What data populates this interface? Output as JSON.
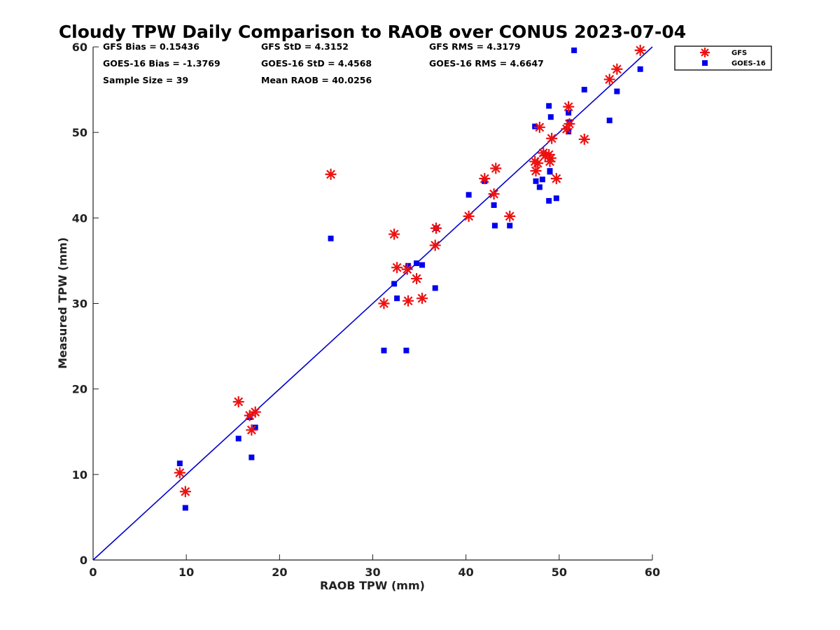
{
  "chart_data": {
    "type": "scatter",
    "title": "Cloudy TPW Daily Comparison to RAOB over CONUS 2023-07-04",
    "xlabel": "RAOB TPW (mm)",
    "ylabel": "Measured TPW (mm)",
    "xlim": [
      0,
      60
    ],
    "ylim": [
      0,
      60
    ],
    "xticks": [
      "0",
      "10",
      "20",
      "30",
      "40",
      "50",
      "60"
    ],
    "yticks": [
      "0",
      "10",
      "20",
      "30",
      "40",
      "50",
      "60"
    ],
    "grid": false,
    "legend_position": "outside-top-right",
    "stats": [
      [
        "GFS Bias = 0.15436",
        "GFS StD = 4.3152",
        "GFS RMS = 4.3179"
      ],
      [
        "GOES-16 Bias = -1.3769",
        "GOES-16 StD = 4.4568",
        "GOES-16 RMS = 4.6647"
      ],
      [
        "Sample Size = 39",
        "Mean RAOB = 40.0256",
        ""
      ]
    ],
    "one_to_one_line": {
      "x": [
        0,
        60
      ],
      "y": [
        0,
        60
      ],
      "color": "#0000cc"
    },
    "series": [
      {
        "name": "GFS",
        "marker": "asterisk",
        "color": "#ee1111",
        "x": [
          9.3,
          9.9,
          15.6,
          16.8,
          17.0,
          17.4,
          25.5,
          31.2,
          32.3,
          32.6,
          33.8,
          33.7,
          34.7,
          35.3,
          36.7,
          36.8,
          40.3,
          42.0,
          43.0,
          43.2,
          44.7,
          47.4,
          47.5,
          47.7,
          47.9,
          48.3,
          48.5,
          48.9,
          49.0,
          49.2,
          49.7,
          50.8,
          51.0,
          51.1,
          52.7,
          55.4,
          56.2,
          58.7,
          49.1
        ],
        "y": [
          10.2,
          8.0,
          18.5,
          16.9,
          15.2,
          17.3,
          45.1,
          30.0,
          38.1,
          34.2,
          30.3,
          34.0,
          32.9,
          30.6,
          36.8,
          38.8,
          40.2,
          44.6,
          42.8,
          45.8,
          40.2,
          46.6,
          45.5,
          46.4,
          50.6,
          47.6,
          47.3,
          47.4,
          46.6,
          49.3,
          44.6,
          50.4,
          53.0,
          51.0,
          49.2,
          56.2,
          57.4,
          59.6,
          47.0
        ]
      },
      {
        "name": "GOES-16",
        "marker": "square",
        "color": "#0000ee",
        "x": [
          9.3,
          9.9,
          15.6,
          16.8,
          17.0,
          17.4,
          25.5,
          31.2,
          32.3,
          32.6,
          33.6,
          33.8,
          34.7,
          35.3,
          36.7,
          36.8,
          40.3,
          42.0,
          43.0,
          43.1,
          44.7,
          47.4,
          47.5,
          47.9,
          48.2,
          48.9,
          48.9,
          49.0,
          49.1,
          49.7,
          51.0,
          51.0,
          51.1,
          51.6,
          52.7,
          55.4,
          56.2,
          58.7,
          49.0
        ],
        "y": [
          11.3,
          6.1,
          14.2,
          16.7,
          12.0,
          15.5,
          37.6,
          24.5,
          32.3,
          30.6,
          24.5,
          34.4,
          34.7,
          34.5,
          31.8,
          38.8,
          42.7,
          44.3,
          41.5,
          39.1,
          39.1,
          50.7,
          44.3,
          43.6,
          44.5,
          42.0,
          53.1,
          45.4,
          51.8,
          42.3,
          52.3,
          50.1,
          51.2,
          59.6,
          55.0,
          51.4,
          54.8,
          57.4,
          45.5
        ]
      }
    ]
  }
}
